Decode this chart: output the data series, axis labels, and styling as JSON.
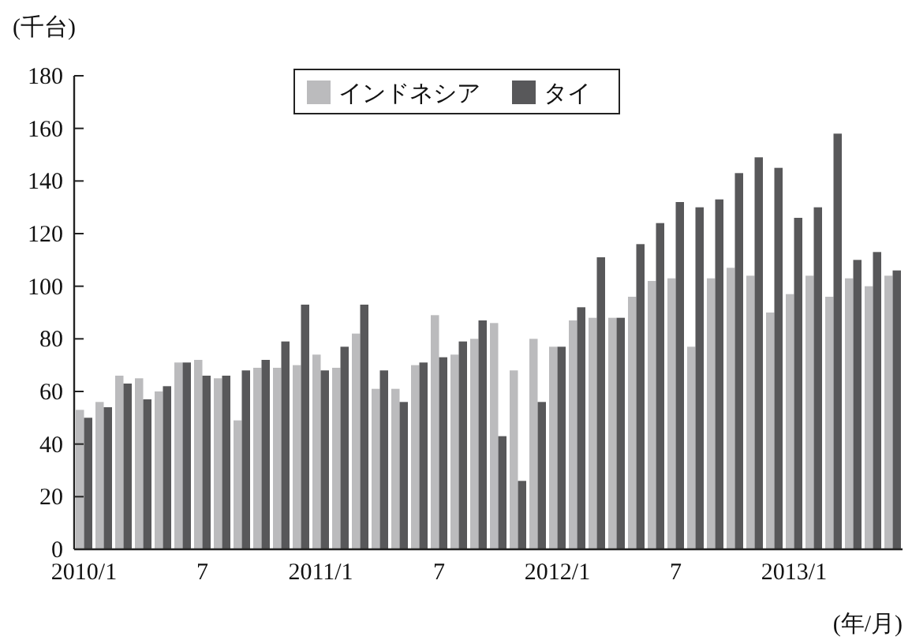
{
  "chart_data": {
    "type": "bar",
    "ylabel": "(千台)",
    "xlabel": "(年/月)",
    "categories": [
      "2010/1",
      null,
      null,
      null,
      null,
      null,
      "7",
      null,
      null,
      null,
      null,
      null,
      "2011/1",
      null,
      null,
      null,
      null,
      null,
      "7",
      null,
      null,
      null,
      null,
      null,
      "2012/1",
      null,
      null,
      null,
      null,
      null,
      "7",
      null,
      null,
      null,
      null,
      null,
      "2013/1",
      null,
      null,
      null,
      null,
      null
    ],
    "series": [
      {
        "name": "インドネシア",
        "color": "#bbbbbd",
        "values": [
          53,
          56,
          66,
          65,
          60,
          71,
          72,
          65,
          49,
          69,
          69,
          70,
          74,
          69,
          82,
          61,
          61,
          70,
          89,
          74,
          80,
          86,
          68,
          80,
          77,
          87,
          88,
          88,
          96,
          102,
          103,
          77,
          103,
          107,
          104,
          90,
          97,
          104,
          96,
          103,
          100,
          104
        ]
      },
      {
        "name": "タイ",
        "color": "#58585a",
        "values": [
          50,
          54,
          63,
          57,
          62,
          71,
          66,
          66,
          68,
          72,
          79,
          93,
          68,
          77,
          93,
          68,
          56,
          71,
          73,
          79,
          87,
          43,
          26,
          56,
          77,
          92,
          111,
          88,
          116,
          124,
          132,
          130,
          133,
          143,
          149,
          145,
          126,
          130,
          158,
          110,
          113,
          106
        ]
      }
    ],
    "ylim": [
      0,
      180
    ],
    "yticks": [
      0,
      20,
      40,
      60,
      80,
      100,
      120,
      140,
      160,
      180
    ],
    "grid": false,
    "legend": "top"
  }
}
